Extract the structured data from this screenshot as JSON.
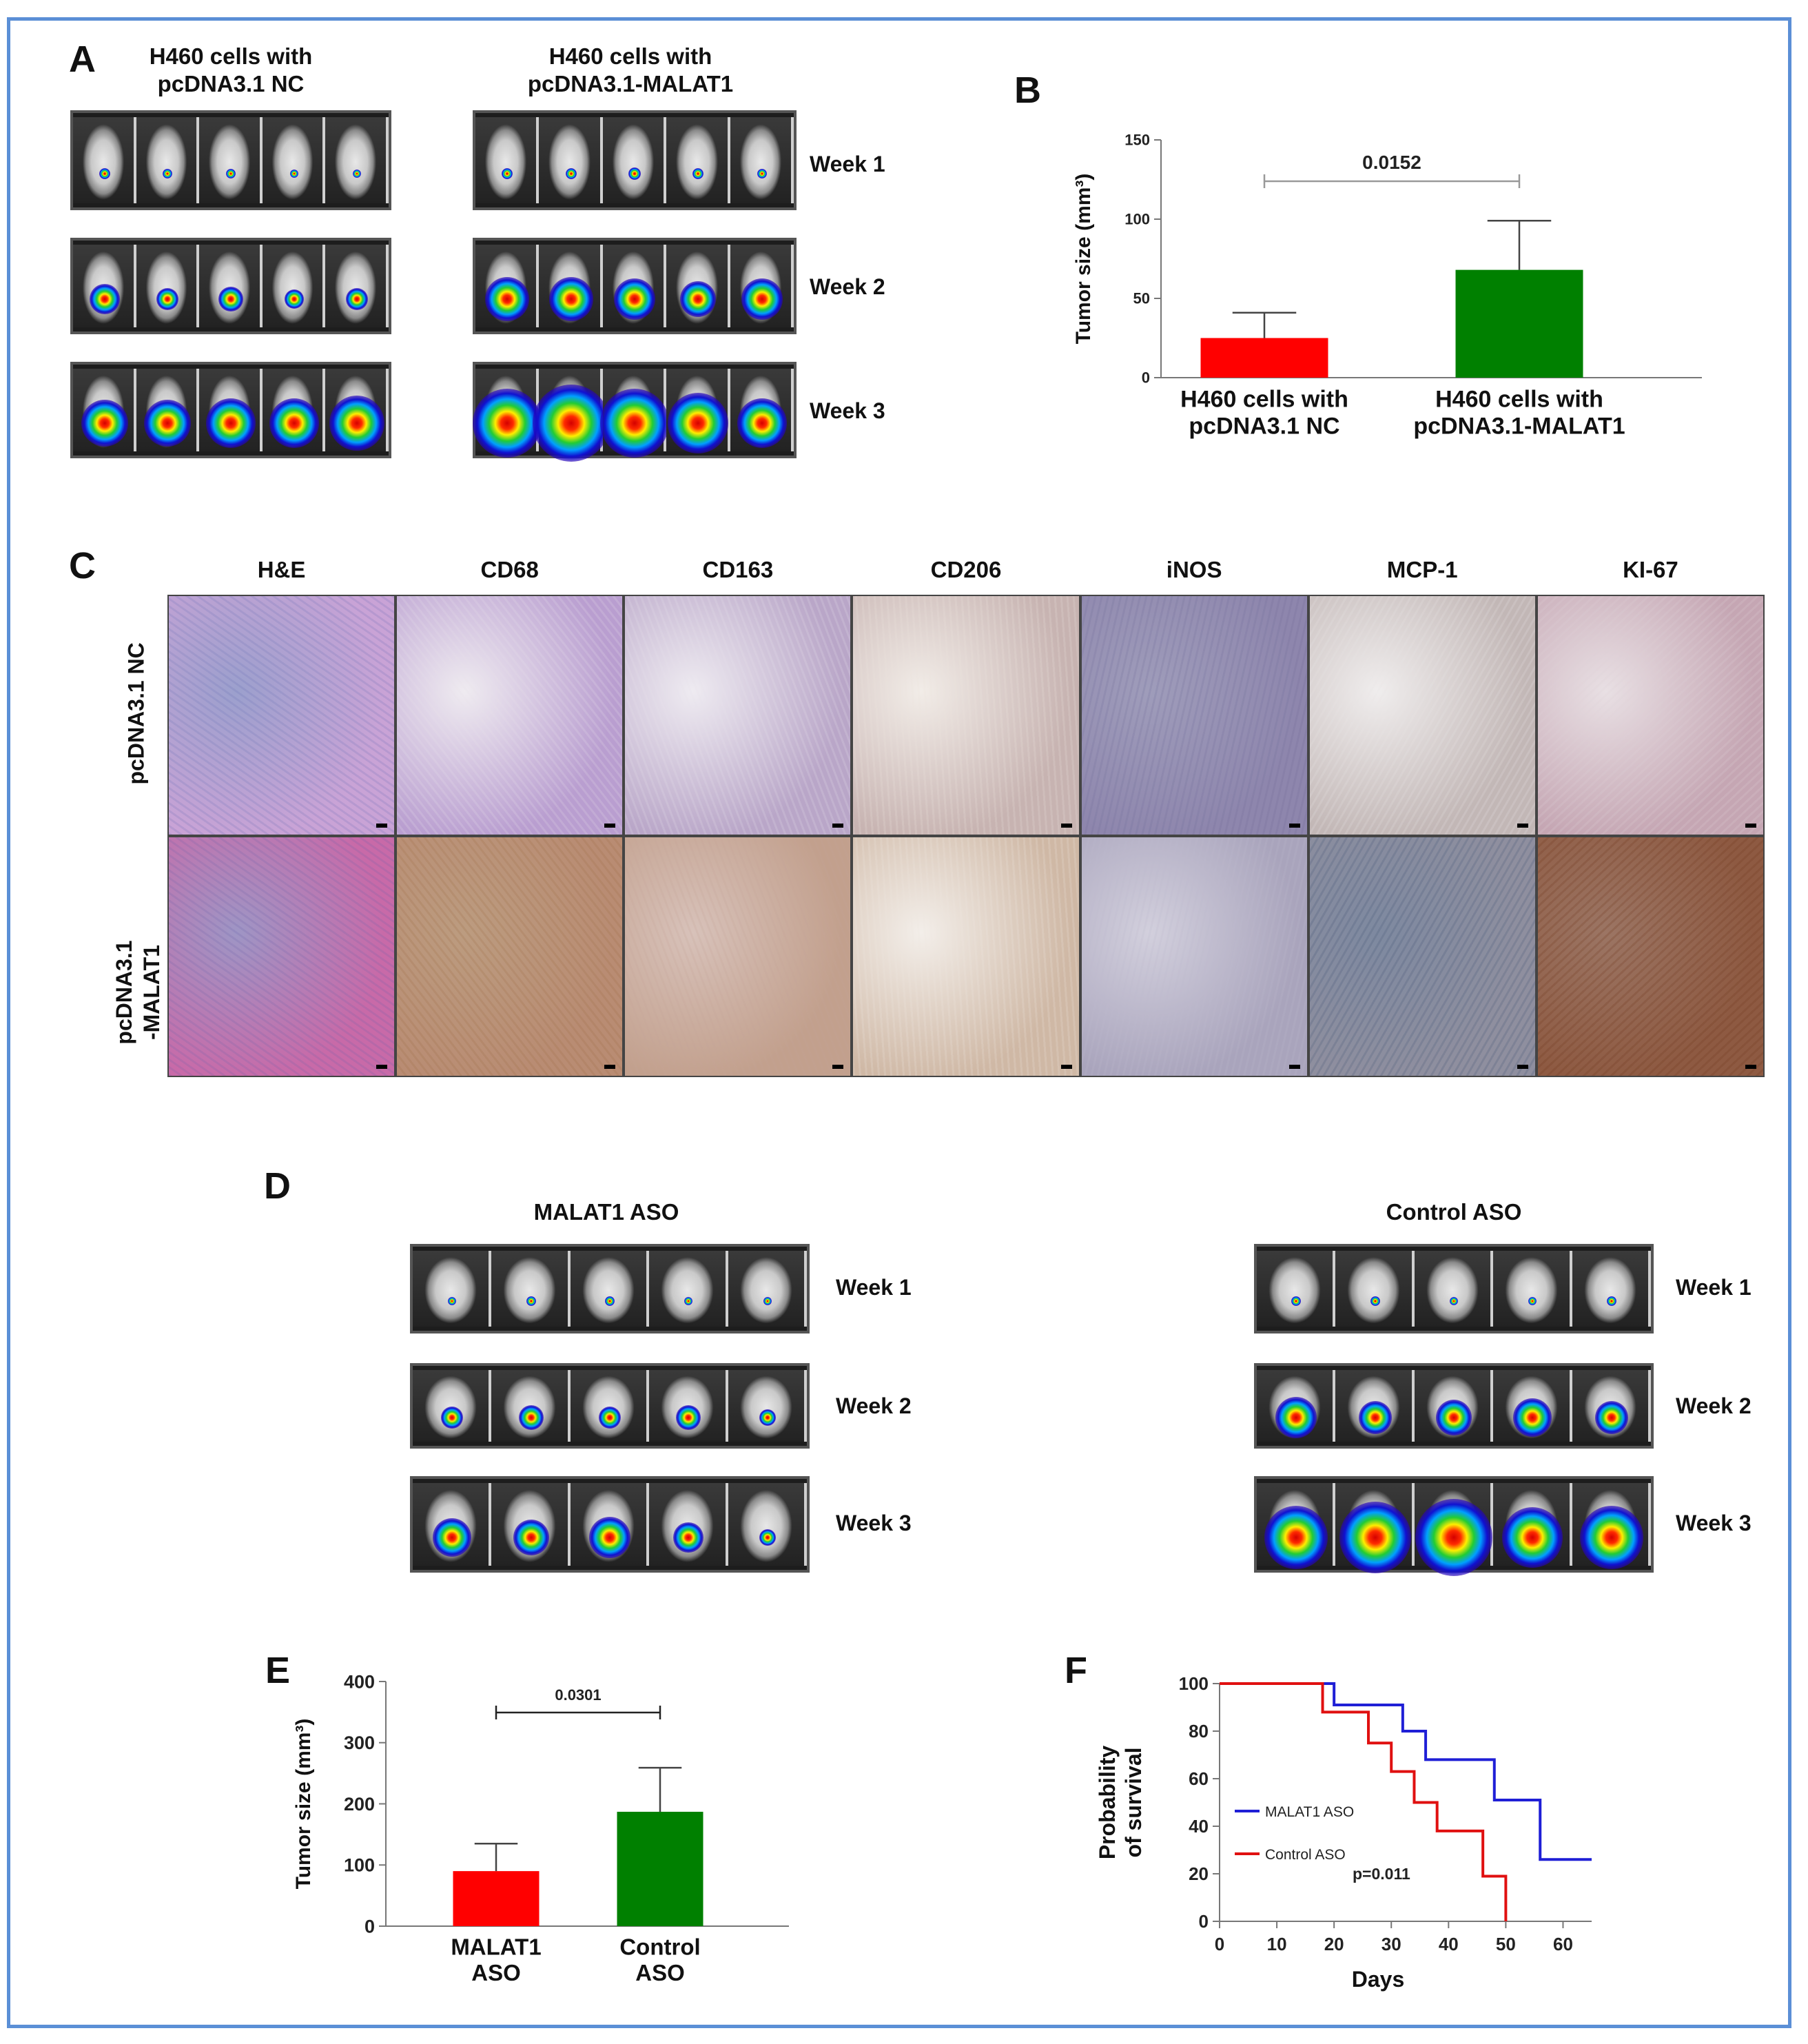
{
  "panels": {
    "A": {
      "letter": "A",
      "group_left": [
        "H460 cells with",
        "pcDNA3.1 NC"
      ],
      "group_right": [
        "H460 cells with",
        "pcDNA3.1-MALAT1"
      ],
      "weeks": [
        "Week 1",
        "Week 2",
        "Week 3"
      ]
    },
    "B": {
      "letter": "B"
    },
    "C": {
      "letter": "C",
      "columns": [
        "H&E",
        "CD68",
        "CD163",
        "CD206",
        "iNOS",
        "MCP-1",
        "KI-67"
      ],
      "rows": [
        "pcDNA3.1 NC",
        "pcDNA3.1",
        "-MALAT1"
      ]
    },
    "D": {
      "letter": "D",
      "group_left": "MALAT1 ASO",
      "group_right": "Control ASO",
      "weeks": [
        "Week 1",
        "Week 2",
        "Week 3"
      ]
    },
    "E": {
      "letter": "E"
    },
    "F": {
      "letter": "F"
    }
  },
  "chart_data": [
    {
      "id": "B",
      "type": "bar",
      "categories": [
        [
          "H460 cells with",
          "pcDNA3.1 NC"
        ],
        [
          "H460 cells with",
          "pcDNA3.1-MALAT1"
        ]
      ],
      "values": [
        25,
        68
      ],
      "errors": [
        16,
        31
      ],
      "colors": [
        "#ff0000",
        "#008000"
      ],
      "ylabel": "Tumor size (mm³)",
      "ylim": [
        0,
        150
      ],
      "yticks": [
        0,
        50,
        100,
        150
      ],
      "annotation": "0.0152"
    },
    {
      "id": "E",
      "type": "bar",
      "categories": [
        [
          "MALAT1",
          "ASO"
        ],
        [
          "Control",
          "ASO"
        ]
      ],
      "values": [
        90,
        187
      ],
      "errors": [
        45,
        72
      ],
      "colors": [
        "#ff0000",
        "#008000"
      ],
      "ylabel": "Tumor size (mm³)",
      "ylim": [
        0,
        400
      ],
      "yticks": [
        0,
        100,
        200,
        300,
        400
      ],
      "annotation": "0.0301"
    },
    {
      "id": "F",
      "type": "line",
      "xlabel": "Days",
      "ylabel": [
        "Probability",
        "of survival"
      ],
      "xlim": [
        0,
        65
      ],
      "ylim": [
        0,
        100
      ],
      "xticks": [
        0,
        10,
        20,
        30,
        40,
        50,
        60
      ],
      "yticks": [
        0,
        20,
        40,
        60,
        80,
        100
      ],
      "series": [
        {
          "name": "MALAT1 ASO",
          "color": "#1f1fd6",
          "x": [
            0,
            20,
            20,
            32,
            32,
            36,
            36,
            48,
            48,
            56,
            56,
            65
          ],
          "y": [
            100,
            100,
            91,
            91,
            80,
            80,
            68,
            68,
            51,
            51,
            26,
            26
          ]
        },
        {
          "name": "Control ASO",
          "color": "#e01010",
          "x": [
            0,
            18,
            18,
            26,
            26,
            30,
            30,
            34,
            34,
            38,
            38,
            46,
            46,
            50,
            50
          ],
          "y": [
            100,
            100,
            88,
            88,
            75,
            75,
            63,
            63,
            50,
            50,
            38,
            38,
            19,
            19,
            0
          ]
        }
      ],
      "annotation": "p=0.011"
    }
  ]
}
